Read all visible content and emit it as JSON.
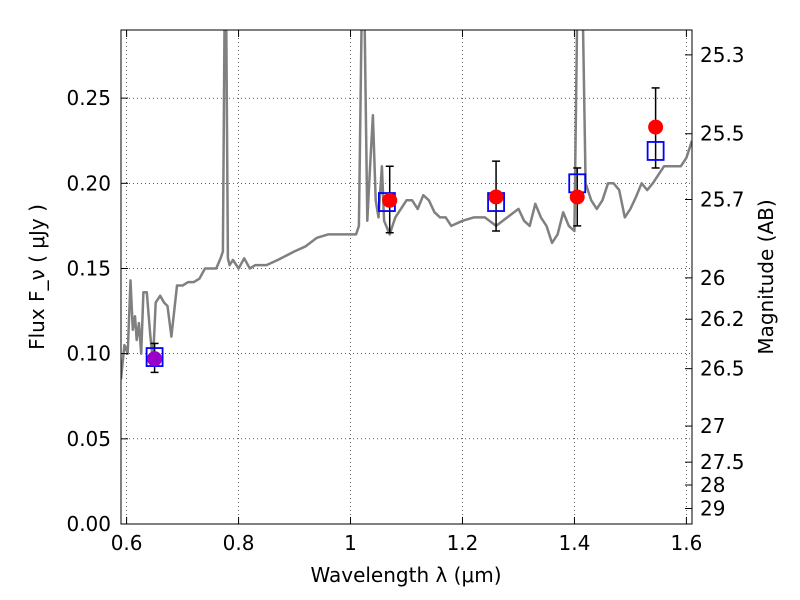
{
  "chart_data": {
    "type": "scatter",
    "xlabel": "Wavelength  λ (μm)",
    "ylabel": "Flux  F_ν  ( μJy )",
    "ylabel_right": "Magnitude (AB)",
    "xlim": [
      0.59,
      1.61
    ],
    "ylim": [
      0.0,
      0.29
    ],
    "grid": true,
    "x_ticks": [
      0.6,
      0.8,
      1.0,
      1.2,
      1.4,
      1.6
    ],
    "x_tick_labels": [
      "0.6",
      "0.8",
      "1",
      "1.2",
      "1.4",
      "1.6"
    ],
    "y_ticks": [
      0.0,
      0.05,
      0.1,
      0.15,
      0.2,
      0.25
    ],
    "y_tick_labels": [
      "0.00",
      "0.05",
      "0.10",
      "0.15",
      "0.20",
      "0.25"
    ],
    "right_ticks": [
      {
        "label": "25.3",
        "flux": 0.2754
      },
      {
        "label": "25.5",
        "flux": 0.2291
      },
      {
        "label": "25.7",
        "flux": 0.1905
      },
      {
        "label": "26",
        "flux": 0.1445
      },
      {
        "label": "26.2",
        "flux": 0.1202
      },
      {
        "label": "26.5",
        "flux": 0.0912
      },
      {
        "label": "27",
        "flux": 0.0575
      },
      {
        "label": "27.5",
        "flux": 0.0363
      },
      {
        "label": "28",
        "flux": 0.0229
      },
      {
        "label": "29",
        "flux": 0.0091
      }
    ],
    "series": [
      {
        "kind": "line",
        "color": "#808080",
        "x": [
          0.59,
          0.596,
          0.602,
          0.607,
          0.611,
          0.615,
          0.618,
          0.622,
          0.626,
          0.63,
          0.636,
          0.642,
          0.647,
          0.652,
          0.66,
          0.667,
          0.673,
          0.68,
          0.69,
          0.7,
          0.71,
          0.72,
          0.73,
          0.74,
          0.75,
          0.76,
          0.768,
          0.772,
          0.775,
          0.778,
          0.781,
          0.784,
          0.79,
          0.8,
          0.81,
          0.82,
          0.83,
          0.85,
          0.87,
          0.9,
          0.92,
          0.94,
          0.96,
          0.98,
          1.0,
          1.01,
          1.015,
          1.02,
          1.025,
          1.03,
          1.035,
          1.04,
          1.045,
          1.05,
          1.056,
          1.06,
          1.07,
          1.08,
          1.09,
          1.1,
          1.11,
          1.12,
          1.13,
          1.14,
          1.15,
          1.16,
          1.17,
          1.18,
          1.2,
          1.22,
          1.24,
          1.26,
          1.28,
          1.3,
          1.31,
          1.32,
          1.33,
          1.34,
          1.35,
          1.36,
          1.37,
          1.38,
          1.39,
          1.4,
          1.405,
          1.41,
          1.415,
          1.42,
          1.43,
          1.44,
          1.45,
          1.46,
          1.47,
          1.48,
          1.49,
          1.5,
          1.51,
          1.52,
          1.53,
          1.54,
          1.55,
          1.56,
          1.57,
          1.58,
          1.59,
          1.6,
          1.61
        ],
        "y": [
          0.085,
          0.105,
          0.1,
          0.143,
          0.114,
          0.122,
          0.108,
          0.118,
          0.1,
          0.136,
          0.136,
          0.112,
          0.095,
          0.13,
          0.134,
          0.13,
          0.128,
          0.11,
          0.14,
          0.14,
          0.142,
          0.142,
          0.144,
          0.15,
          0.15,
          0.15,
          0.156,
          0.16,
          0.3,
          0.3,
          0.156,
          0.152,
          0.155,
          0.15,
          0.156,
          0.15,
          0.152,
          0.152,
          0.155,
          0.16,
          0.163,
          0.168,
          0.17,
          0.17,
          0.17,
          0.17,
          0.175,
          0.3,
          0.3,
          0.178,
          0.21,
          0.24,
          0.19,
          0.18,
          0.21,
          0.178,
          0.17,
          0.18,
          0.185,
          0.19,
          0.19,
          0.185,
          0.193,
          0.19,
          0.183,
          0.18,
          0.18,
          0.175,
          0.178,
          0.18,
          0.18,
          0.175,
          0.18,
          0.185,
          0.178,
          0.175,
          0.188,
          0.18,
          0.175,
          0.165,
          0.17,
          0.183,
          0.175,
          0.172,
          0.3,
          0.3,
          0.3,
          0.2,
          0.19,
          0.185,
          0.19,
          0.2,
          0.2,
          0.196,
          0.18,
          0.185,
          0.192,
          0.2,
          0.196,
          0.2,
          0.205,
          0.21,
          0.21,
          0.21,
          0.21,
          0.215,
          0.225
        ]
      },
      {
        "kind": "errorbar",
        "color": "#000000",
        "x": [
          0.65,
          1.07,
          1.26,
          1.405,
          1.545
        ],
        "low": [
          0.089,
          0.171,
          0.172,
          0.175,
          0.209
        ],
        "high": [
          0.106,
          0.21,
          0.213,
          0.209,
          0.256
        ]
      },
      {
        "kind": "open-squares",
        "color": "#0000ff",
        "x": [
          0.65,
          1.065,
          1.26,
          1.405,
          1.545
        ],
        "y": [
          0.098,
          0.189,
          0.189,
          0.2,
          0.219
        ]
      },
      {
        "kind": "filled-circles",
        "color": "#ff0000",
        "x": [
          0.65,
          1.07,
          1.26,
          1.405,
          1.545
        ],
        "y": [
          0.097,
          0.19,
          0.192,
          0.192,
          0.233
        ]
      }
    ],
    "highlight_point": {
      "x": 0.65,
      "y": 0.097,
      "color": "#9900cc"
    }
  }
}
